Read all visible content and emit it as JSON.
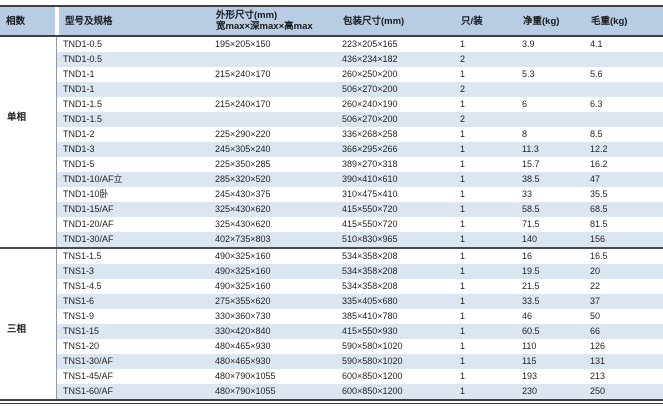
{
  "colors": {
    "header_bg": "#b8cce4",
    "alt_row_bg": "#dce6f1",
    "line_dark": "#404040",
    "line_gray": "#8f9bab"
  },
  "table": {
    "columns": [
      {
        "label": "相数"
      },
      {
        "label": "型号及规格"
      },
      {
        "label": "外形尺寸(mm)",
        "sublabel": "宽max×深max×高max"
      },
      {
        "label": "包装尺寸(mm)"
      },
      {
        "label": "只/装"
      },
      {
        "label": "净重(kg)"
      },
      {
        "label": "毛重(kg)"
      }
    ],
    "sections": [
      {
        "phase": "单相",
        "rows": [
          [
            "TND1-0.5",
            "195×205×150",
            "223×205×165",
            "1",
            "3.9",
            "4.1"
          ],
          [
            "TND1-0.5",
            "",
            "436×234×182",
            "2",
            "",
            ""
          ],
          [
            "TND1-1",
            "215×240×170",
            "260×250×200",
            "1",
            "5.3",
            "5.6"
          ],
          [
            "TND1-1",
            "",
            "506×270×200",
            "2",
            "",
            ""
          ],
          [
            "TND1-1.5",
            "215×240×170",
            "260×240×190",
            "1",
            "6",
            "6.3"
          ],
          [
            "TND1-1.5",
            "",
            "506×270×200",
            "2",
            "",
            ""
          ],
          [
            "TND1-2",
            "225×290×220",
            "336×268×258",
            "1",
            "8",
            "8.5"
          ],
          [
            "TND1-3",
            "245×305×240",
            "366×295×266",
            "1",
            "11.3",
            "12.2"
          ],
          [
            "TND1-5",
            "225×350×285",
            "389×270×318",
            "1",
            "15.7",
            "16.2"
          ],
          [
            "TND1-10/AF立",
            "285×320×520",
            "390×410×610",
            "1",
            "38.5",
            "47"
          ],
          [
            "TND1-10卧",
            "245×430×375",
            "310×475×410",
            "1",
            "33",
            "35.5"
          ],
          [
            "TND1-15/AF",
            "325×430×620",
            "415×550×720",
            "1",
            "58.5",
            "68.5"
          ],
          [
            "TND1-20/AF",
            "325×430×620",
            "415×550×720",
            "1",
            "71.5",
            "81.5"
          ],
          [
            "TND1-30/AF",
            "402×735×803",
            "510×830×965",
            "1",
            "140",
            "156"
          ]
        ]
      },
      {
        "phase": "三相",
        "rows": [
          [
            "TNS1-1.5",
            "490×325×160",
            "534×358×208",
            "1",
            "16",
            "16.5"
          ],
          [
            "TNS1-3",
            "490×325×160",
            "534×358×208",
            "1",
            "19.5",
            "20"
          ],
          [
            "TNS1-4.5",
            "490×325×160",
            "534×358×208",
            "1",
            "21.5",
            "22"
          ],
          [
            "TNS1-6",
            "275×355×620",
            "335×405×680",
            "1",
            "33.5",
            "37"
          ],
          [
            "TNS1-9",
            "330×360×730",
            "385×410×780",
            "1",
            "46",
            "50"
          ],
          [
            "TNS1-15",
            "330×420×840",
            "415×550×930",
            "1",
            "60.5",
            "66"
          ],
          [
            "TNS1-20",
            "480×465×930",
            "590×580×1020",
            "1",
            "110",
            "126"
          ],
          [
            "TNS1-30/AF",
            "480×465×930",
            "590×580×1020",
            "1",
            "115",
            "131"
          ],
          [
            "TNS1-45/AF",
            "480×790×1055",
            "600×850×1200",
            "1",
            "193",
            "213"
          ],
          [
            "TNS1-60/AF",
            "480×790×1055",
            "600×850×1200",
            "1",
            "230",
            "250"
          ]
        ]
      }
    ]
  }
}
